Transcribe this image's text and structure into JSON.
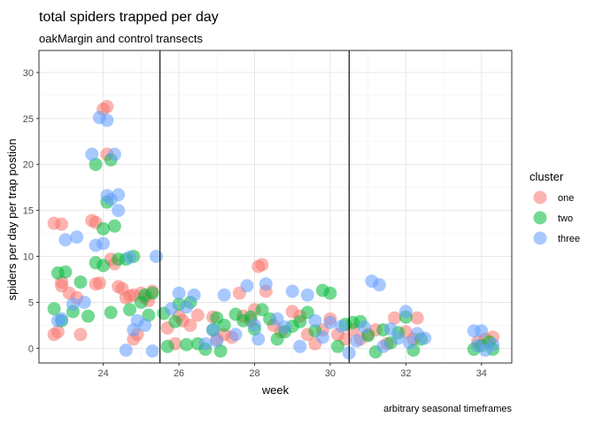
{
  "chart_data": {
    "type": "scatter",
    "title": "total spiders trapped per day",
    "subtitle": "oakMargin and control transects",
    "xlabel": "week",
    "ylabel": "spiders per day per trap postion",
    "caption": "arbitrary seasonal timeframes",
    "xlim": [
      22.3,
      34.8
    ],
    "ylim": [
      -1.6,
      32.4
    ],
    "x_ticks": [
      24,
      26,
      28,
      30,
      32,
      34
    ],
    "y_ticks": [
      0,
      5,
      10,
      15,
      20,
      25,
      30
    ],
    "grid": true,
    "vlines": [
      25.5,
      30.5
    ],
    "legend": {
      "title": "cluster",
      "position": "right"
    },
    "series": [
      {
        "name": "one",
        "color": "#F8766D",
        "points": [
          [
            22.7,
            13.6
          ],
          [
            22.9,
            13.5
          ],
          [
            22.7,
            1.5
          ],
          [
            22.8,
            1.8
          ],
          [
            22.9,
            7.2
          ],
          [
            22.9,
            6.8
          ],
          [
            23.1,
            6.0
          ],
          [
            23.3,
            5.5
          ],
          [
            23.4,
            1.5
          ],
          [
            23.7,
            13.9
          ],
          [
            23.8,
            13.7
          ],
          [
            23.8,
            7.0
          ],
          [
            23.9,
            7.1
          ],
          [
            24.0,
            26.0
          ],
          [
            24.1,
            26.3
          ],
          [
            24.1,
            21.1
          ],
          [
            24.2,
            9.7
          ],
          [
            24.3,
            9.2
          ],
          [
            24.4,
            6.7
          ],
          [
            24.5,
            6.5
          ],
          [
            24.6,
            5.5
          ],
          [
            24.7,
            5.7
          ],
          [
            24.8,
            5.8
          ],
          [
            24.8,
            1.0
          ],
          [
            24.9,
            1.5
          ],
          [
            25.0,
            6.0
          ],
          [
            25.1,
            5.5
          ],
          [
            25.2,
            5.2
          ],
          [
            25.3,
            6.2
          ],
          [
            25.7,
            2.2
          ],
          [
            25.9,
            0.5
          ],
          [
            26.0,
            3.5
          ],
          [
            26.1,
            3.0
          ],
          [
            26.3,
            2.5
          ],
          [
            26.5,
            3.6
          ],
          [
            26.9,
            3.4
          ],
          [
            27.0,
            1.0
          ],
          [
            27.2,
            1.5
          ],
          [
            27.4,
            1.2
          ],
          [
            27.6,
            6.0
          ],
          [
            27.7,
            3.5
          ],
          [
            27.9,
            3.0
          ],
          [
            28.0,
            4.2
          ],
          [
            28.1,
            8.9
          ],
          [
            28.2,
            9.1
          ],
          [
            28.3,
            6.2
          ],
          [
            28.5,
            2.5
          ],
          [
            28.7,
            1.8
          ],
          [
            29.0,
            4.0
          ],
          [
            29.2,
            3.5
          ],
          [
            29.4,
            1.5
          ],
          [
            29.6,
            0.5
          ],
          [
            29.8,
            2.0
          ],
          [
            30.0,
            3.2
          ],
          [
            30.2,
            1.5
          ],
          [
            30.4,
            1.0
          ],
          [
            30.6,
            2.0
          ],
          [
            30.8,
            1.0
          ],
          [
            31.0,
            1.5
          ],
          [
            31.2,
            2.0
          ],
          [
            31.5,
            0.5
          ],
          [
            31.7,
            3.3
          ],
          [
            32.0,
            1.8
          ],
          [
            32.2,
            1.0
          ],
          [
            32.3,
            3.3
          ],
          [
            33.9,
            0.7
          ],
          [
            34.1,
            1.0
          ],
          [
            34.3,
            1.2
          ]
        ]
      },
      {
        "name": "two",
        "color": "#00BA38",
        "points": [
          [
            22.7,
            4.3
          ],
          [
            22.8,
            8.2
          ],
          [
            22.9,
            3.0
          ],
          [
            23.0,
            8.3
          ],
          [
            23.2,
            4.0
          ],
          [
            23.4,
            7.2
          ],
          [
            23.6,
            3.5
          ],
          [
            23.8,
            9.3
          ],
          [
            23.8,
            20.0
          ],
          [
            24.0,
            9.0
          ],
          [
            24.0,
            13.0
          ],
          [
            24.1,
            15.9
          ],
          [
            24.2,
            3.9
          ],
          [
            24.2,
            20.5
          ],
          [
            24.3,
            13.3
          ],
          [
            24.4,
            9.7
          ],
          [
            24.6,
            9.7
          ],
          [
            24.7,
            4.2
          ],
          [
            24.8,
            10.0
          ],
          [
            25.0,
            5.0
          ],
          [
            25.1,
            5.8
          ],
          [
            25.2,
            3.6
          ],
          [
            25.3,
            6.0
          ],
          [
            25.6,
            3.8
          ],
          [
            25.7,
            0.2
          ],
          [
            25.9,
            2.9
          ],
          [
            26.0,
            4.8
          ],
          [
            26.2,
            0.4
          ],
          [
            26.3,
            5.0
          ],
          [
            26.5,
            0.5
          ],
          [
            26.7,
            -0.1
          ],
          [
            26.9,
            2.0
          ],
          [
            27.0,
            3.3
          ],
          [
            27.1,
            -0.3
          ],
          [
            27.2,
            2.5
          ],
          [
            27.5,
            3.7
          ],
          [
            27.7,
            3.0
          ],
          [
            27.9,
            3.4
          ],
          [
            28.0,
            2.1
          ],
          [
            28.2,
            4.2
          ],
          [
            28.4,
            3.2
          ],
          [
            28.6,
            1.0
          ],
          [
            28.8,
            1.8
          ],
          [
            29.0,
            2.4
          ],
          [
            29.2,
            2.9
          ],
          [
            29.4,
            3.9
          ],
          [
            29.6,
            1.9
          ],
          [
            29.8,
            6.3
          ],
          [
            30.0,
            6.0
          ],
          [
            30.2,
            0.2
          ],
          [
            30.4,
            2.6
          ],
          [
            30.6,
            2.8
          ],
          [
            30.8,
            2.9
          ],
          [
            31.0,
            1.4
          ],
          [
            31.2,
            -0.4
          ],
          [
            31.4,
            2.0
          ],
          [
            31.6,
            0.6
          ],
          [
            31.8,
            1.7
          ],
          [
            32.0,
            3.4
          ],
          [
            32.2,
            -0.2
          ],
          [
            32.4,
            1.0
          ],
          [
            33.8,
            -0.1
          ],
          [
            34.0,
            0.3
          ],
          [
            34.2,
            0.7
          ],
          [
            34.3,
            -0.1
          ]
        ]
      },
      {
        "name": "three",
        "color": "#619CFF",
        "points": [
          [
            22.8,
            3.0
          ],
          [
            22.9,
            3.2
          ],
          [
            23.0,
            11.8
          ],
          [
            23.2,
            4.8
          ],
          [
            23.3,
            12.1
          ],
          [
            23.5,
            5.0
          ],
          [
            23.7,
            21.1
          ],
          [
            23.8,
            11.2
          ],
          [
            23.9,
            25.1
          ],
          [
            24.0,
            11.4
          ],
          [
            24.1,
            16.6
          ],
          [
            24.1,
            24.8
          ],
          [
            24.2,
            16.2
          ],
          [
            24.3,
            21.1
          ],
          [
            24.4,
            16.7
          ],
          [
            24.4,
            15.0
          ],
          [
            24.6,
            -0.2
          ],
          [
            24.7,
            9.9
          ],
          [
            24.8,
            2.0
          ],
          [
            24.9,
            3.0
          ],
          [
            25.1,
            2.5
          ],
          [
            25.3,
            -0.3
          ],
          [
            25.4,
            10.0
          ],
          [
            25.8,
            4.3
          ],
          [
            26.0,
            6.0
          ],
          [
            26.2,
            4.5
          ],
          [
            26.4,
            5.8
          ],
          [
            26.7,
            0.5
          ],
          [
            26.9,
            2.0
          ],
          [
            27.0,
            0.8
          ],
          [
            27.2,
            5.8
          ],
          [
            27.5,
            1.5
          ],
          [
            27.8,
            6.8
          ],
          [
            28.0,
            2.5
          ],
          [
            28.1,
            1.0
          ],
          [
            28.3,
            7.0
          ],
          [
            28.6,
            3.2
          ],
          [
            28.8,
            2.3
          ],
          [
            29.0,
            6.2
          ],
          [
            29.2,
            0.2
          ],
          [
            29.4,
            5.8
          ],
          [
            29.6,
            3.0
          ],
          [
            29.8,
            1.2
          ],
          [
            30.0,
            2.8
          ],
          [
            30.3,
            2.4
          ],
          [
            30.5,
            -0.5
          ],
          [
            30.7,
            0.8
          ],
          [
            30.9,
            2.3
          ],
          [
            31.1,
            7.3
          ],
          [
            31.3,
            6.9
          ],
          [
            31.4,
            0.2
          ],
          [
            31.6,
            2.1
          ],
          [
            31.8,
            1.1
          ],
          [
            32.0,
            4.0
          ],
          [
            32.1,
            0.6
          ],
          [
            32.3,
            1.6
          ],
          [
            32.5,
            1.1
          ],
          [
            33.8,
            1.9
          ],
          [
            33.9,
            0.3
          ],
          [
            34.0,
            1.9
          ],
          [
            34.1,
            -0.2
          ],
          [
            34.3,
            0.4
          ]
        ]
      }
    ]
  }
}
